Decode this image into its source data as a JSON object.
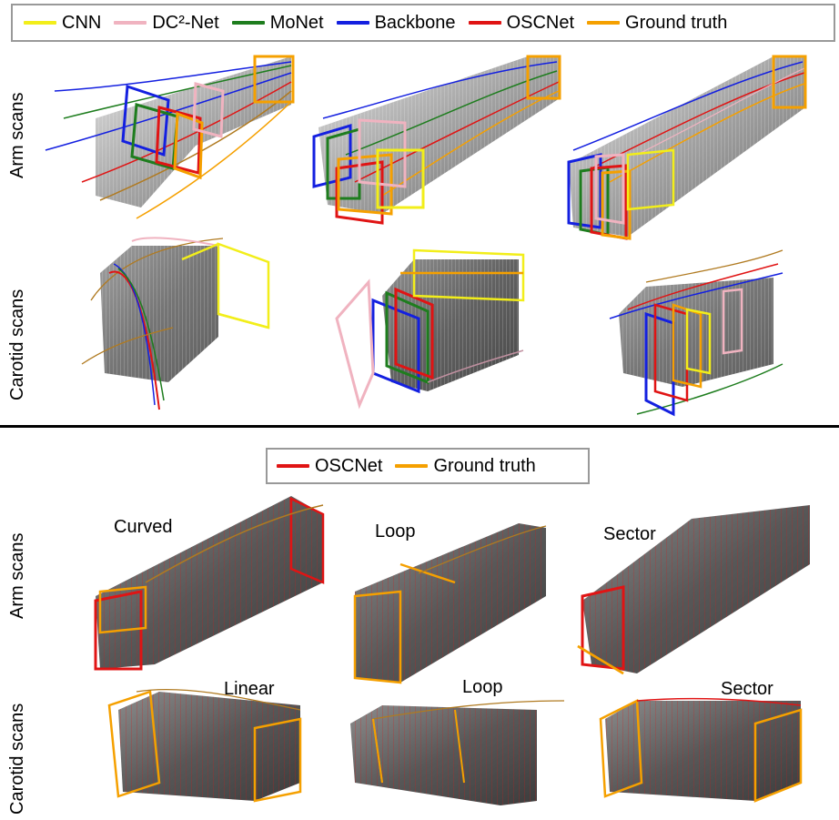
{
  "top": {
    "legend": [
      {
        "label": "CNN",
        "color": "#f2ee1a"
      },
      {
        "label": "DC²-Net",
        "color": "#f0b3c0"
      },
      {
        "label": "MoNet",
        "color": "#1e7d1e"
      },
      {
        "label": "Backbone",
        "color": "#1420e0"
      },
      {
        "label": "OSCNet",
        "color": "#e01414"
      },
      {
        "label": "Ground truth",
        "color": "#f5a000"
      }
    ],
    "row_labels": {
      "arm": "Arm scans",
      "carotid": "Carotid scans"
    }
  },
  "bottom": {
    "legend": [
      {
        "label": "OSCNet",
        "color": "#e01414"
      },
      {
        "label": "Ground truth",
        "color": "#f5a000"
      }
    ],
    "row_labels": {
      "arm": "Arm scans",
      "carotid": "Carotid scans"
    },
    "scan_labels": {
      "arm": [
        "Curved",
        "Loop",
        "Sector"
      ],
      "carotid": [
        "Linear",
        "Loop",
        "Sector"
      ]
    }
  }
}
